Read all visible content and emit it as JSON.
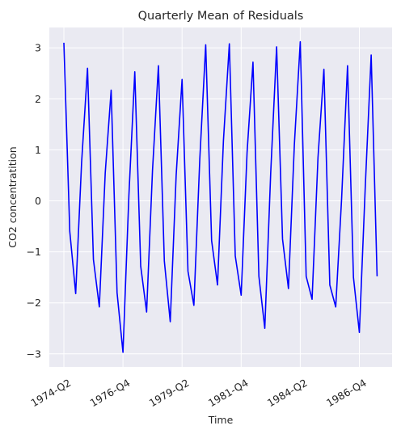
{
  "chart_data": {
    "type": "line",
    "title": "Quarterly Mean of Residuals",
    "xlabel": "Time",
    "ylabel": "CO2 concentratition",
    "ylim": [
      -3.3,
      3.4
    ],
    "grid": true,
    "legend": "none",
    "colors": {
      "line": "#0000ff",
      "background": "#eaeaf2",
      "grid": "#ffffff"
    },
    "x_ticks": [
      {
        "label": "1974-Q2",
        "index": 0
      },
      {
        "label": "1976-Q4",
        "index": 10
      },
      {
        "label": "1979-Q2",
        "index": 20
      },
      {
        "label": "1981-Q4",
        "index": 30
      },
      {
        "label": "1984-Q2",
        "index": 40
      },
      {
        "label": "1986-Q4",
        "index": 50
      }
    ],
    "y_ticks": [
      {
        "label": "3",
        "value": 3
      },
      {
        "label": "2",
        "value": 2
      },
      {
        "label": "1",
        "value": 1
      },
      {
        "label": "0",
        "value": 0
      },
      {
        "label": "−1",
        "value": -1
      },
      {
        "label": "−2",
        "value": -2
      },
      {
        "label": "−3",
        "value": -3
      }
    ],
    "series": [
      {
        "values": [
          3.1,
          -0.6,
          -1.82,
          0.75,
          2.6,
          -1.15,
          -2.08,
          0.55,
          2.17,
          -1.8,
          -2.97,
          0.1,
          2.53,
          -1.28,
          -2.18,
          0.6,
          2.65,
          -1.18,
          -2.37,
          0.5,
          2.38,
          -1.38,
          -2.05,
          0.82,
          3.06,
          -0.78,
          -1.65,
          1.18,
          3.08,
          -1.08,
          -1.85,
          0.95,
          2.72,
          -1.48,
          -2.5,
          0.55,
          3.02,
          -0.75,
          -1.72,
          1.1,
          3.12,
          -1.48,
          -1.93,
          0.85,
          2.58,
          -1.65,
          -2.08,
          0.05,
          2.65,
          -1.5,
          -2.58,
          0.28,
          2.86,
          -1.48
        ]
      }
    ]
  }
}
